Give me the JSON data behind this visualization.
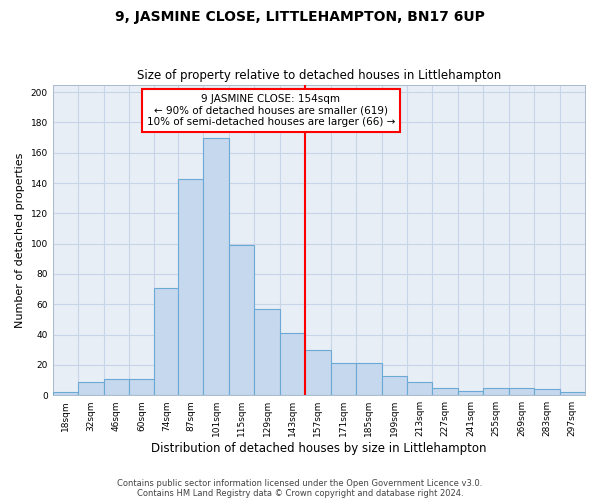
{
  "title": "9, JASMINE CLOSE, LITTLEHAMPTON, BN17 6UP",
  "subtitle": "Size of property relative to detached houses in Littlehampton",
  "xlabel": "Distribution of detached houses by size in Littlehampton",
  "ylabel": "Number of detached properties",
  "footnote1": "Contains HM Land Registry data © Crown copyright and database right 2024.",
  "footnote2": "Contains public sector information licensed under the Open Government Licence v3.0.",
  "bar_labels": [
    "18sqm",
    "32sqm",
    "46sqm",
    "60sqm",
    "74sqm",
    "87sqm",
    "101sqm",
    "115sqm",
    "129sqm",
    "143sqm",
    "157sqm",
    "171sqm",
    "185sqm",
    "199sqm",
    "213sqm",
    "227sqm",
    "241sqm",
    "255sqm",
    "269sqm",
    "283sqm",
    "297sqm"
  ],
  "bar_values": [
    2,
    9,
    11,
    11,
    71,
    143,
    170,
    99,
    57,
    41,
    30,
    21,
    21,
    13,
    9,
    5,
    3,
    5,
    5,
    4,
    2
  ],
  "bar_color": "#c5d8ee",
  "bar_edge_color": "#6aaad4",
  "bin_edges": [
    18,
    32,
    46,
    60,
    74,
    87,
    101,
    115,
    129,
    143,
    157,
    171,
    185,
    199,
    213,
    227,
    241,
    255,
    269,
    283,
    297,
    311
  ],
  "annotation_text": "9 JASMINE CLOSE: 154sqm\n← 90% of detached houses are smaller (619)\n10% of semi-detached houses are larger (66) →",
  "vline_x": 157,
  "ylim": [
    0,
    205
  ],
  "yticks": [
    0,
    20,
    40,
    60,
    80,
    100,
    120,
    140,
    160,
    180,
    200
  ],
  "bg_color": "#e8eef6",
  "grid_color": "#c8d4e8",
  "title_fontsize": 10,
  "subtitle_fontsize": 8.5,
  "axis_label_fontsize": 8,
  "tick_fontsize": 6.5,
  "footnote_fontsize": 6
}
